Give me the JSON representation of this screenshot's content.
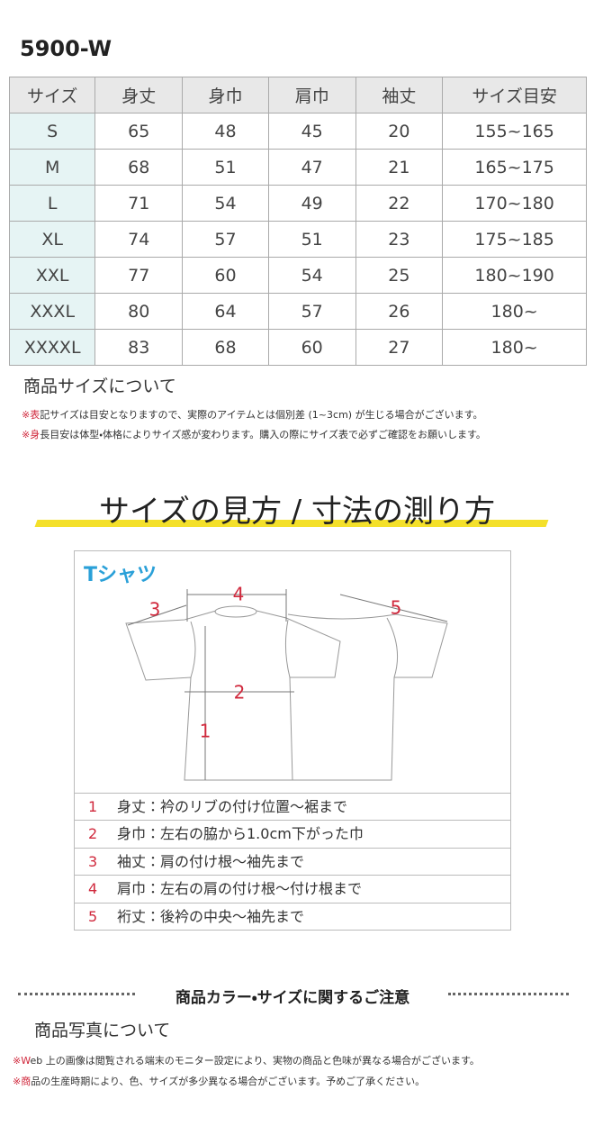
{
  "product_code": "5900-W",
  "size_table": {
    "header": [
      "サイズ",
      "身丈",
      "身巾",
      "肩巾",
      "袖丈",
      "サイズ目安"
    ],
    "rows": [
      [
        "S",
        65,
        48,
        45,
        20,
        "155~165"
      ],
      [
        "M",
        68,
        51,
        47,
        21,
        "165~175"
      ],
      [
        "L",
        71,
        54,
        49,
        22,
        "170~180"
      ],
      [
        "XL",
        74,
        57,
        51,
        23,
        "175~185"
      ],
      [
        "XXL",
        77,
        60,
        54,
        25,
        "180~190"
      ],
      [
        "XXXL",
        80,
        64,
        57,
        26,
        "180~"
      ],
      [
        "XXXXL",
        83,
        68,
        60,
        27,
        "180~"
      ]
    ]
  },
  "size_notes": {
    "title": "商品サイズについて",
    "notes": [
      "※表記サイズは目安となりますので、実際のアイテムとは個別差 (1~3cm) が生じる場合がございます。",
      "※身長目安は体型・体格によりサイズ感が変わります。購入の際にサイズ表で必ずご確認をお願いします。"
    ]
  },
  "measure": {
    "title": "サイズの見方 / 寸法の測り方",
    "garment": "Tシャツ",
    "diagram_labels": [
      "1",
      "2",
      "3",
      "4",
      "5"
    ],
    "legend": [
      {
        "num": "1",
        "text": "身丈：衿のリブの付け位置〜裾まで"
      },
      {
        "num": "2",
        "text": "身巾：左右の脇から1.0cm下がった巾"
      },
      {
        "num": "3",
        "text": "袖丈：肩の付け根〜袖先まで"
      },
      {
        "num": "4",
        "text": "肩巾：左右の肩の付け根〜付け根まで"
      },
      {
        "num": "5",
        "text": "裄丈：後衿の中央〜袖先まで"
      }
    ]
  },
  "caution": {
    "title": "商品カラー・サイズに関するご注意",
    "subtitle": "商品写真について",
    "notes": [
      "※Web 上の画像は閲覧される端末のモニター設定により、実物の商品と色味が異なる場合がございます。",
      "※商品の生産時期により、色、サイズが多少異なる場合がございます。予めご了承ください。"
    ]
  }
}
